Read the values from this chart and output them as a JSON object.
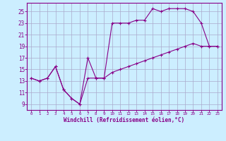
{
  "xlabel": "Windchill (Refroidissement éolien,°C)",
  "background_color": "#cceeff",
  "grid_color": "#aaaacc",
  "line_color": "#880088",
  "xlim": [
    -0.5,
    23.5
  ],
  "ylim": [
    8.0,
    26.5
  ],
  "xticks": [
    0,
    1,
    2,
    3,
    4,
    5,
    6,
    7,
    8,
    9,
    10,
    11,
    12,
    13,
    14,
    15,
    16,
    17,
    18,
    19,
    20,
    21,
    22,
    23
  ],
  "yticks": [
    9,
    11,
    13,
    15,
    17,
    19,
    21,
    23,
    25
  ],
  "line1_x": [
    0,
    1,
    2,
    3,
    4,
    5,
    6,
    7,
    8,
    9,
    10,
    11,
    12,
    13,
    14,
    15,
    16,
    17,
    18,
    19,
    20,
    21,
    22,
    23
  ],
  "line1_y": [
    13.5,
    13.0,
    13.5,
    15.5,
    11.5,
    10.0,
    9.0,
    17.0,
    13.5,
    13.5,
    23.0,
    23.0,
    23.0,
    23.5,
    23.5,
    25.5,
    25.0,
    25.5,
    25.5,
    25.5,
    25.0,
    23.0,
    19.0,
    19.0
  ],
  "line2_x": [
    0,
    1,
    2,
    3,
    4,
    5,
    6,
    7,
    8,
    9,
    10,
    11,
    12,
    13,
    14,
    15,
    16,
    17,
    18,
    19,
    20,
    21,
    22,
    23
  ],
  "line2_y": [
    13.5,
    13.0,
    13.5,
    15.5,
    11.5,
    10.0,
    9.0,
    13.5,
    13.5,
    13.5,
    14.5,
    15.0,
    15.5,
    16.0,
    16.5,
    17.0,
    17.5,
    18.0,
    18.5,
    19.0,
    19.5,
    19.0,
    19.0,
    19.0
  ],
  "marker": "+"
}
